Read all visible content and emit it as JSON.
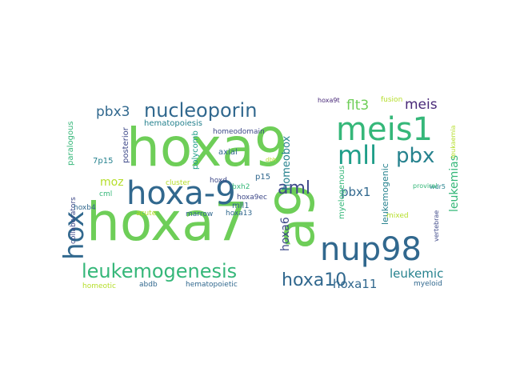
{
  "word_cloud": {
    "palette": {
      "background": "#ffffff",
      "viridis": [
        "#440154",
        "#482878",
        "#3e4989",
        "#31688e",
        "#26828e",
        "#1f9e89",
        "#35b779",
        "#6ece58",
        "#b5de2b",
        "#fde725"
      ]
    },
    "words": [
      {
        "text": "hoxa9",
        "color": "#6ece58"
      },
      {
        "text": "hoxa7",
        "color": "#6ece58"
      },
      {
        "text": "a9",
        "color": "#6ece58"
      },
      {
        "text": "hoxa-9",
        "color": "#31688e"
      },
      {
        "text": "meis1",
        "color": "#35b779"
      },
      {
        "text": "nup98",
        "color": "#31688e"
      },
      {
        "text": "mll",
        "color": "#1f9e89"
      },
      {
        "text": "pbx",
        "color": "#26828e"
      },
      {
        "text": "hox",
        "color": "#31688e"
      },
      {
        "text": "nucleoporin",
        "color": "#31688e"
      },
      {
        "text": "leukemogenesis",
        "color": "#35b779"
      },
      {
        "text": "aml",
        "color": "#3e4989"
      },
      {
        "text": "hoxa10",
        "color": "#31688e"
      },
      {
        "text": "leukemias",
        "color": "#35b779"
      },
      {
        "text": "pbx3",
        "color": "#31688e"
      },
      {
        "text": "flt3",
        "color": "#6ece58"
      },
      {
        "text": "meis",
        "color": "#482878"
      },
      {
        "text": "homeobox",
        "color": "#26828e"
      },
      {
        "text": "hoxa6",
        "color": "#3e4989"
      },
      {
        "text": "leukemic",
        "color": "#26828e"
      },
      {
        "text": "hoxa11",
        "color": "#31688e"
      },
      {
        "text": "pbx1",
        "color": "#31688e"
      },
      {
        "text": "moz",
        "color": "#b5de2b"
      },
      {
        "text": "hematopoiesis",
        "color": "#26828e"
      },
      {
        "text": "myelogenous",
        "color": "#35b779"
      },
      {
        "text": "leukemogenic",
        "color": "#26828e"
      },
      {
        "text": "posterior",
        "color": "#3e4989"
      },
      {
        "text": "paralogous",
        "color": "#35b779"
      },
      {
        "text": "7p15",
        "color": "#26828e"
      },
      {
        "text": "polycomb",
        "color": "#1f9e89"
      },
      {
        "text": "axial",
        "color": "#31688e"
      },
      {
        "text": "hoxa9t",
        "color": "#482878"
      },
      {
        "text": "homeodomain",
        "color": "#3e4989"
      },
      {
        "text": "p15",
        "color": "#31688e"
      },
      {
        "text": "fusion",
        "color": "#b5de2b"
      },
      {
        "text": "wdr5",
        "color": "#26828e"
      },
      {
        "text": "proviral",
        "color": "#35b779"
      },
      {
        "text": "leukaemia",
        "color": "#b5de2b"
      },
      {
        "text": "hoxd",
        "color": "#3e4989"
      },
      {
        "text": "bxh2",
        "color": "#35b779"
      },
      {
        "text": "mll1",
        "color": "#31688e"
      },
      {
        "text": "hoxa9ec",
        "color": "#3e4989"
      },
      {
        "text": "cluster",
        "color": "#b5de2b"
      },
      {
        "text": "marrow",
        "color": "#31688e"
      },
      {
        "text": "hoxa13",
        "color": "#31688e"
      },
      {
        "text": "acute",
        "color": "#b5de2b"
      },
      {
        "text": "mixed",
        "color": "#b5de2b"
      },
      {
        "text": "vertebrae",
        "color": "#3e4989"
      },
      {
        "text": "collaborators",
        "color": "#3e4989"
      },
      {
        "text": "hoxb4",
        "color": "#31688e"
      },
      {
        "text": "cml",
        "color": "#35b779"
      },
      {
        "text": "homeotic",
        "color": "#b5de2b"
      },
      {
        "text": "abdb",
        "color": "#31688e"
      },
      {
        "text": "hematopoietic",
        "color": "#31688e"
      },
      {
        "text": "myeloid",
        "color": "#31688e"
      },
      {
        "text": "dbh",
        "color": "#b5de2b"
      }
    ]
  }
}
